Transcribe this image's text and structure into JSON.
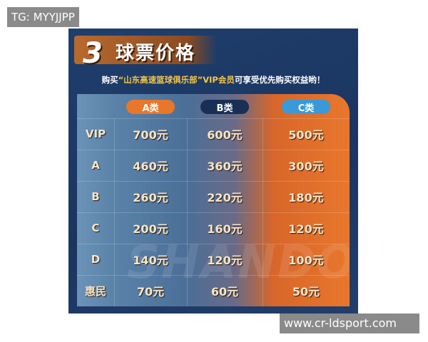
{
  "badge": "TG: MYYJJPP",
  "watermark_url": "www.cr-ldsport.com",
  "poster": {
    "title_number": "3",
    "title": "球票价格",
    "subtitle": [
      "购买",
      "“山东高速篮球俱乐部”",
      "VIP会员",
      "可享受优先购买权益哟！"
    ],
    "background_text": "SHANDO",
    "table": {
      "columns": [
        "A类",
        "B类",
        "C类"
      ],
      "rows": [
        [
          "VIP",
          "700元",
          "600元",
          "500元"
        ],
        [
          "A",
          "460元",
          "360元",
          "300元"
        ],
        [
          "B",
          "260元",
          "220元",
          "180元"
        ],
        [
          "C",
          "200元",
          "160元",
          "120元"
        ],
        [
          "D",
          "140元",
          "120元",
          "100元"
        ],
        [
          "惠民",
          "70元",
          "60元",
          "50元"
        ]
      ]
    }
  }
}
